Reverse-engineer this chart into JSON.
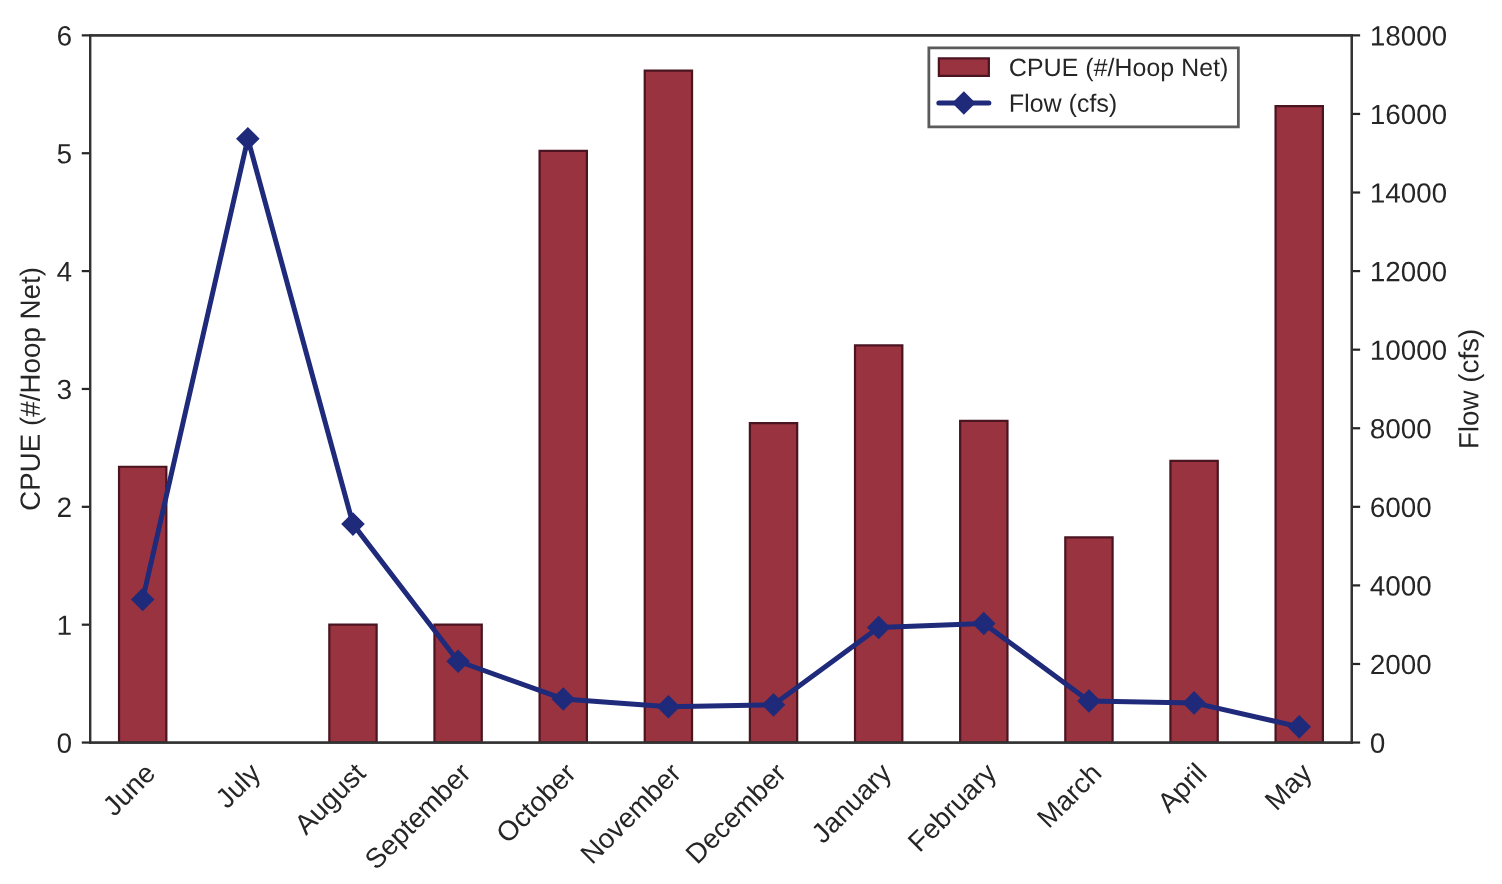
{
  "chart_data": {
    "type": "bar",
    "ylabel": "CPUE (#/Hoop Net)",
    "y2label": "Flow (cfs)",
    "categories": [
      "June",
      "July",
      "August",
      "September",
      "October",
      "November",
      "December",
      "January",
      "February",
      "March",
      "April",
      "May"
    ],
    "series": [
      {
        "name": "CPUE (#/Hoop Net)",
        "color": "#993340",
        "values": [
          2.34,
          null,
          1.0,
          1.0,
          5.02,
          5.7,
          2.71,
          3.37,
          2.73,
          1.74,
          2.39,
          5.4
        ]
      },
      {
        "name": "Flow (cfs)",
        "type": "line",
        "axis": "y2",
        "color": "#1f2a7a",
        "marker": "diamond",
        "values": [
          3640,
          15370,
          5560,
          2070,
          1110,
          910,
          960,
          2930,
          3030,
          1060,
          1010,
          400
        ]
      }
    ],
    "ylim": [
      0,
      6
    ],
    "yticks": [
      0,
      1,
      2,
      3,
      4,
      5,
      6
    ],
    "y2lim": [
      0,
      18000
    ],
    "y2ticks": [
      0,
      2000,
      4000,
      6000,
      8000,
      10000,
      12000,
      14000,
      16000,
      18000
    ],
    "grid": false,
    "legend": "top right"
  }
}
